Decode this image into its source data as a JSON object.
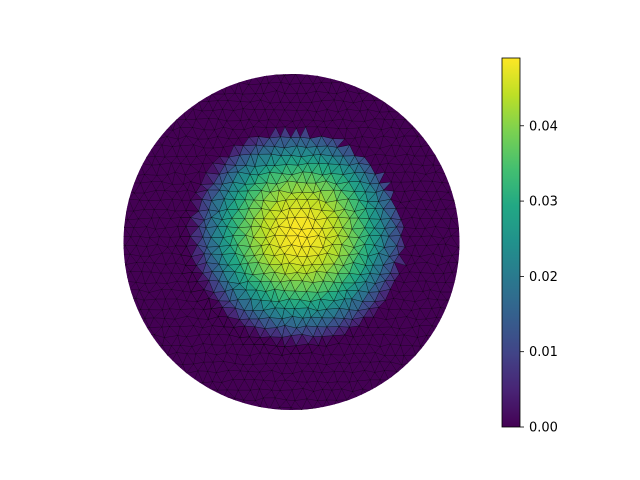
{
  "chart_data": {
    "type": "heatmap",
    "subtype": "triangulated-mesh-field",
    "title": "",
    "xlabel": "",
    "ylabel": "",
    "grid": false,
    "axes_visible": false,
    "domain": {
      "shape": "disk",
      "center": [
        0,
        0
      ],
      "outer_radius": 1.0
    },
    "field": {
      "description": "bump centered near origin, zero outside inner circle",
      "peak_value": 0.049,
      "peak_location": [
        0.05,
        0.05
      ],
      "support_radius": 0.66
    },
    "colorbar": {
      "cmap": "viridis",
      "vmin": 0.0,
      "vmax": 0.049,
      "ticks": [
        0.0,
        0.01,
        0.02,
        0.03,
        0.04
      ],
      "tick_labels": [
        "0.00",
        "0.01",
        "0.02",
        "0.03",
        "0.04"
      ],
      "placement": "right"
    }
  }
}
